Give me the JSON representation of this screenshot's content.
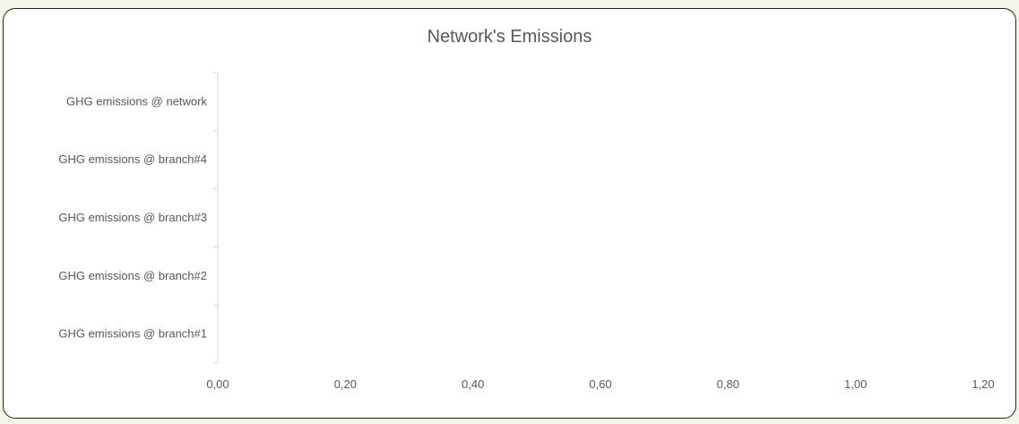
{
  "chart_data": {
    "type": "bar",
    "orientation": "horizontal",
    "title": "Network's Emissions",
    "categories": [
      "GHG emissions @ network",
      "GHG emissions @ branch#4",
      "GHG emissions @ branch#3",
      "GHG emissions @ branch#2",
      "GHG emissions @ branch#1"
    ],
    "values": [
      0,
      0,
      0,
      0,
      0
    ],
    "xlim": [
      0,
      1.2
    ],
    "xticks": [
      "0,00",
      "0,20",
      "0,40",
      "0,60",
      "0,80",
      "1,00",
      "1,20"
    ],
    "grid": false,
    "legend": "none",
    "colors": {
      "axis": "#d9d9d9",
      "text": "#595959",
      "bar": "#4472c4",
      "border": "#222222"
    }
  }
}
